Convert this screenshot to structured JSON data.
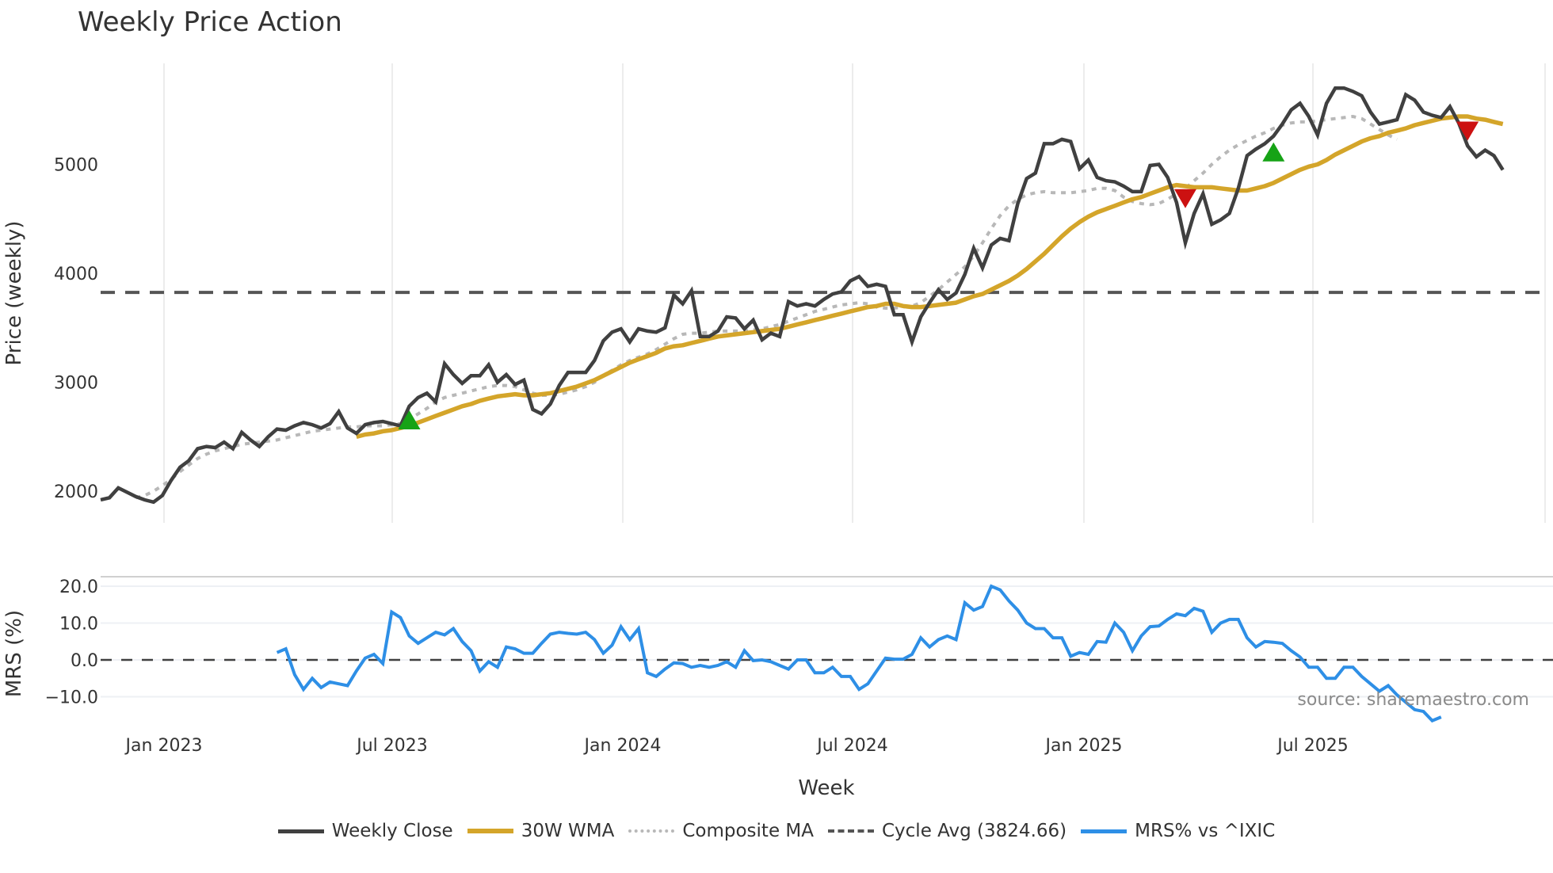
{
  "title": "Weekly Price Action",
  "source_note": "source: sharemaestro.com",
  "legend": [
    {
      "label": "Weekly Close",
      "color": "#404040",
      "style": "solid"
    },
    {
      "label": "30W WMA",
      "color": "#d4a52a",
      "style": "solid"
    },
    {
      "label": "Composite MA",
      "color": "#b8b8b8",
      "style": "dotted"
    },
    {
      "label": "Cycle Avg (3824.66)",
      "color": "#555555",
      "style": "dashed"
    },
    {
      "label": "MRS% vs ^IXIC",
      "color": "#2e8fe6",
      "style": "solid"
    }
  ],
  "colors": {
    "close": "#404040",
    "wma": "#d4a52a",
    "composite": "#b8b8b8",
    "cycle": "#555555",
    "mrs": "#2e8fe6",
    "buy": "#16a316",
    "sell": "#cc1111",
    "grid": "#ececec"
  },
  "chart_data": [
    {
      "type": "line",
      "title": "Weekly Price Action",
      "xlabel": "Week",
      "ylabel": "Price (weekly)",
      "yticks": [
        2000,
        3000,
        4000,
        5000
      ],
      "ylim": [
        1700,
        5900
      ],
      "xticks": [
        "Jan 2023",
        "Jul 2023",
        "Jan 2024",
        "Jul 2024",
        "Jan 2025",
        "Jul 2025"
      ],
      "x_start_week_offset_from_jan2023": -7,
      "cycle_avg": 3824.66,
      "series": [
        {
          "name": "Weekly Close",
          "values": [
            1920,
            1940,
            2030,
            1990,
            1950,
            1920,
            1900,
            1960,
            2100,
            2220,
            2280,
            2390,
            2410,
            2400,
            2450,
            2390,
            2540,
            2470,
            2410,
            2500,
            2570,
            2560,
            2600,
            2630,
            2610,
            2580,
            2620,
            2730,
            2580,
            2530,
            2610,
            2630,
            2640,
            2620,
            2600,
            2780,
            2860,
            2900,
            2820,
            3170,
            3070,
            2990,
            3060,
            3060,
            3160,
            3000,
            3070,
            2980,
            3020,
            2750,
            2710,
            2800,
            2970,
            3090,
            3090,
            3090,
            3200,
            3380,
            3460,
            3490,
            3370,
            3490,
            3470,
            3460,
            3500,
            3800,
            3720,
            3840,
            3420,
            3420,
            3470,
            3600,
            3590,
            3490,
            3570,
            3390,
            3450,
            3420,
            3740,
            3700,
            3720,
            3700,
            3760,
            3810,
            3830,
            3930,
            3970,
            3880,
            3900,
            3880,
            3620,
            3620,
            3370,
            3600,
            3730,
            3850,
            3760,
            3820,
            3990,
            4230,
            4050,
            4260,
            4320,
            4300,
            4640,
            4870,
            4920,
            5190,
            5190,
            5230,
            5210,
            4960,
            5040,
            4880,
            4850,
            4840,
            4800,
            4750,
            4750,
            4990,
            5000,
            4880,
            4650,
            4280,
            4550,
            4730,
            4450,
            4490,
            4550,
            4780,
            5080,
            5140,
            5190,
            5260,
            5370,
            5500,
            5560,
            5440,
            5270,
            5560,
            5700,
            5700,
            5670,
            5630,
            5480,
            5370,
            5390,
            5410,
            5640,
            5590,
            5480,
            5450,
            5430,
            5530,
            5380,
            5170,
            5070,
            5130,
            5080,
            4950
          ]
        },
        {
          "name": "30W WMA",
          "start_index": 29,
          "values": [
            2500,
            2520,
            2530,
            2550,
            2560,
            2580,
            2600,
            2630,
            2660,
            2690,
            2720,
            2750,
            2780,
            2800,
            2830,
            2850,
            2870,
            2880,
            2890,
            2880,
            2880,
            2890,
            2900,
            2920,
            2940,
            2960,
            2990,
            3020,
            3060,
            3100,
            3140,
            3180,
            3210,
            3240,
            3270,
            3310,
            3330,
            3340,
            3360,
            3380,
            3400,
            3420,
            3430,
            3440,
            3450,
            3460,
            3470,
            3480,
            3490,
            3510,
            3530,
            3550,
            3570,
            3590,
            3610,
            3630,
            3650,
            3670,
            3690,
            3700,
            3720,
            3720,
            3700,
            3690,
            3690,
            3700,
            3710,
            3720,
            3730,
            3760,
            3790,
            3810,
            3850,
            3890,
            3930,
            3980,
            4040,
            4110,
            4180,
            4260,
            4340,
            4410,
            4470,
            4520,
            4560,
            4590,
            4620,
            4650,
            4680,
            4700,
            4730,
            4760,
            4790,
            4810,
            4800,
            4790,
            4790,
            4790,
            4780,
            4770,
            4760,
            4760,
            4780,
            4800,
            4830,
            4870,
            4910,
            4950,
            4980,
            5000,
            5040,
            5090,
            5130,
            5170,
            5210,
            5240,
            5260,
            5290,
            5310,
            5330,
            5360,
            5380,
            5400,
            5420,
            5430,
            5440,
            5440,
            5420,
            5410,
            5390,
            5370
          ]
        },
        {
          "name": "Composite MA",
          "start_index": 4,
          "values": [
            1940,
            1960,
            2000,
            2050,
            2110,
            2180,
            2240,
            2300,
            2340,
            2370,
            2390,
            2410,
            2430,
            2440,
            2450,
            2460,
            2470,
            2490,
            2510,
            2530,
            2550,
            2560,
            2570,
            2580,
            2590,
            2590,
            2600,
            2600,
            2600,
            2610,
            2620,
            2660,
            2710,
            2760,
            2820,
            2860,
            2880,
            2900,
            2920,
            2940,
            2960,
            2970,
            2970,
            2960,
            2930,
            2900,
            2880,
            2880,
            2890,
            2910,
            2930,
            2960,
            3000,
            3060,
            3110,
            3160,
            3200,
            3230,
            3260,
            3300,
            3350,
            3400,
            3440,
            3450,
            3450,
            3460,
            3470,
            3470,
            3470,
            3470,
            3480,
            3490,
            3510,
            3530,
            3560,
            3590,
            3620,
            3650,
            3670,
            3690,
            3710,
            3720,
            3730,
            3720,
            3690,
            3680,
            3680,
            3690,
            3700,
            3730,
            3790,
            3850,
            3920,
            3990,
            4060,
            4160,
            4280,
            4410,
            4530,
            4620,
            4680,
            4720,
            4740,
            4750,
            4740,
            4740,
            4740,
            4750,
            4760,
            4780,
            4780,
            4760,
            4700,
            4660,
            4640,
            4630,
            4640,
            4680,
            4730,
            4780,
            4850,
            4920,
            5000,
            5070,
            5130,
            5180,
            5220,
            5260,
            5290,
            5330,
            5360,
            5380,
            5390,
            5390,
            5400,
            5410,
            5420,
            5430,
            5440,
            5420,
            5370,
            5320,
            5270,
            5230
          ]
        },
        {
          "name": "MRS% vs ^IXIC",
          "start_index": 20,
          "values": [
            2.0,
            3.0,
            -4.0,
            -8.0,
            -5.0,
            -7.5,
            -6.0,
            -6.5,
            -7.0,
            -3.0,
            0.5,
            1.5,
            -1.0,
            13.0,
            11.5,
            6.5,
            4.5,
            6.0,
            7.5,
            6.8,
            8.5,
            5.0,
            2.5,
            -3.0,
            -0.5,
            -2.0,
            3.5,
            3.0,
            1.8,
            1.8,
            4.5,
            7.0,
            7.5,
            7.2,
            7.0,
            7.5,
            5.5,
            1.8,
            4.0,
            9.0,
            5.5,
            8.5,
            -3.5,
            -4.5,
            -2.5,
            -0.8,
            -1.0,
            -2.0,
            -1.5,
            -2.0,
            -1.5,
            -0.5,
            -2.0,
            2.5,
            -0.2,
            0.0,
            -0.5,
            -1.5,
            -2.5,
            0.0,
            0.0,
            -3.5,
            -3.5,
            -2.0,
            -4.5,
            -4.5,
            -8.0,
            -6.5,
            -3.0,
            0.5,
            0.2,
            0.2,
            1.5,
            6.0,
            3.5,
            5.5,
            6.5,
            5.5,
            15.5,
            13.5,
            14.5,
            20.0,
            19.0,
            16.0,
            13.5,
            10.0,
            8.5,
            8.5,
            6.0,
            6.0,
            1.0,
            2.0,
            1.5,
            5.0,
            4.8,
            10.0,
            7.5,
            2.5,
            6.5,
            9.0,
            9.2,
            11.0,
            12.5,
            12.0,
            14.0,
            13.2,
            7.5,
            10.0,
            11.0,
            11.0,
            6.0,
            3.5,
            5.0,
            4.8,
            4.5,
            2.5,
            0.8,
            -2.0,
            -2.0,
            -5.0,
            -5.0,
            -2.0,
            -2.0,
            -4.5,
            -6.5,
            -8.5,
            -7.0,
            -9.5,
            -11.5,
            -13.5,
            -14.0,
            -16.5,
            -15.5
          ]
        }
      ],
      "signals": [
        {
          "type": "buy",
          "index": 35,
          "price": 2640
        },
        {
          "type": "sell",
          "index": 123,
          "price": 4700
        },
        {
          "type": "buy",
          "index": 133,
          "price": 5100
        },
        {
          "type": "sell",
          "index": 155,
          "price": 5320
        }
      ]
    },
    {
      "type": "line",
      "ylabel": "MRS (%)",
      "yticks": [
        20.0,
        10.0,
        0.0,
        -10.0
      ],
      "ytick_labels": [
        "20.0",
        "10.0",
        "0.0",
        "−10.0"
      ],
      "ylim": [
        -17,
        22
      ],
      "zero_line": 0.0
    }
  ],
  "axes": {
    "price_ylabel": "Price (weekly)",
    "mrs_ylabel": "MRS (%)",
    "xlabel": "Week",
    "price_ticks": [
      "5000",
      "4000",
      "3000",
      "2000"
    ],
    "mrs_ticks": [
      "20.0",
      "10.0",
      "0.0",
      "−10.0"
    ],
    "x_ticks": [
      "Jan 2023",
      "Jul 2023",
      "Jan 2024",
      "Jul 2024",
      "Jan 2025",
      "Jul 2025"
    ]
  }
}
